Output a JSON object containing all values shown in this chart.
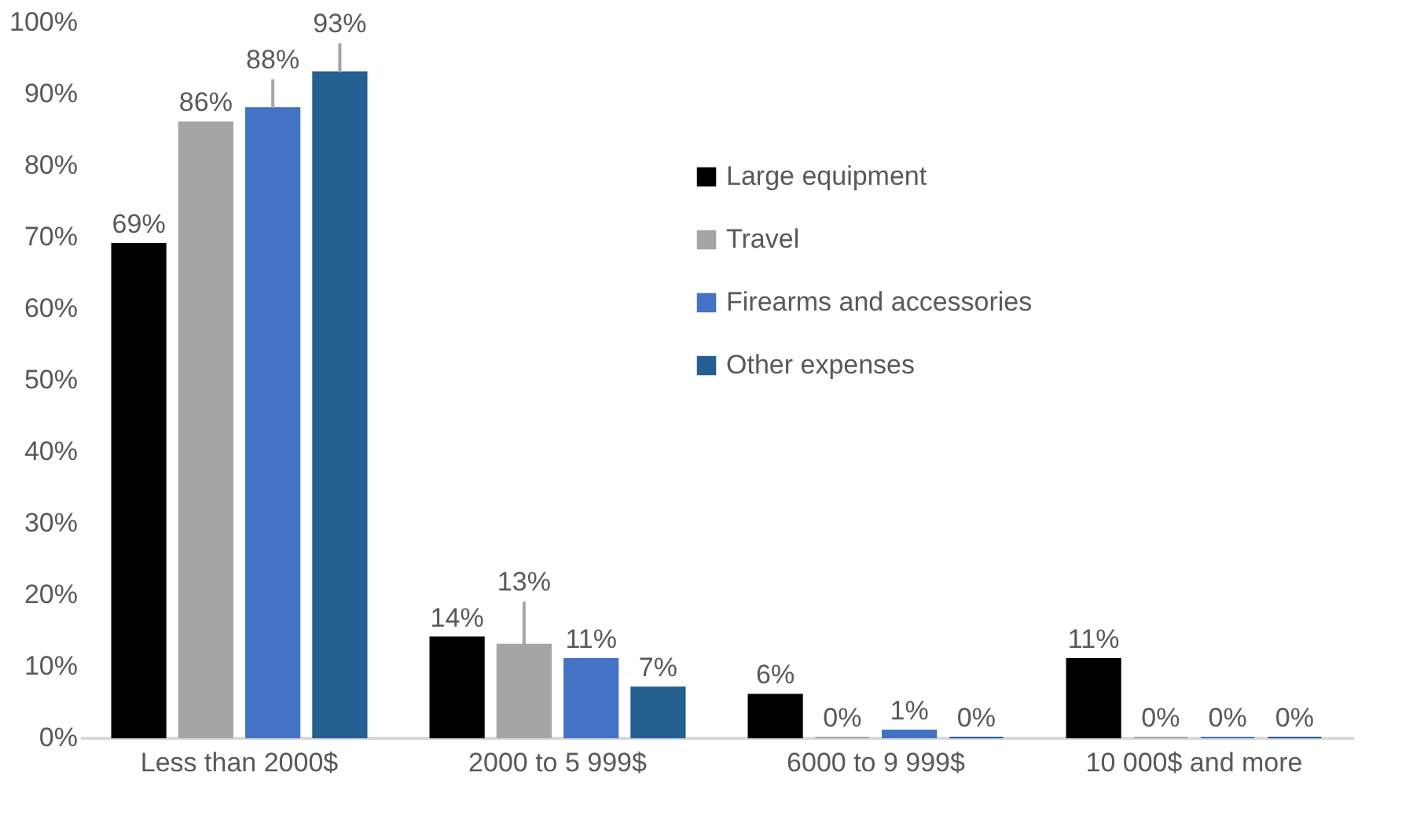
{
  "chart_data": {
    "type": "bar",
    "categories": [
      "Less than 2000$",
      "2000 to 5 999$",
      "6000 to 9 999$",
      "10 000$ and more"
    ],
    "series": [
      {
        "name": "Large equipment",
        "color": "#000000",
        "values": [
          69,
          14,
          6,
          11
        ],
        "value_labels": [
          "69%",
          "14%",
          "6%",
          "11%"
        ]
      },
      {
        "name": "Travel",
        "color": "#a5a5a5",
        "values": [
          86,
          13,
          0,
          0
        ],
        "value_labels": [
          "86%",
          "13%",
          "0%",
          "0%"
        ],
        "errors": [
          null,
          [
            13,
            19
          ],
          null,
          null
        ]
      },
      {
        "name": "Firearms and accessories",
        "color": "#4472c4",
        "values": [
          88,
          11,
          1,
          0
        ],
        "value_labels": [
          "88%",
          "11%",
          "1%",
          "0%"
        ],
        "errors": [
          [
            88,
            92
          ],
          null,
          null,
          null
        ]
      },
      {
        "name": "Other expenses",
        "color": "#255e91",
        "values": [
          93,
          7,
          0,
          0
        ],
        "value_labels": [
          "93%",
          "7%",
          "0%",
          "0%"
        ],
        "errors": [
          [
            93,
            97
          ],
          null,
          null,
          null
        ]
      }
    ],
    "ylim": [
      0,
      100
    ],
    "yticks": [
      {
        "value": 0,
        "label": "0%"
      },
      {
        "value": 10,
        "label": "10%"
      },
      {
        "value": 20,
        "label": "20%"
      },
      {
        "value": 30,
        "label": "30%"
      },
      {
        "value": 40,
        "label": "40%"
      },
      {
        "value": 50,
        "label": "50%"
      },
      {
        "value": 60,
        "label": "60%"
      },
      {
        "value": 70,
        "label": "70%"
      },
      {
        "value": 80,
        "label": "80%"
      },
      {
        "value": 90,
        "label": "90%"
      },
      {
        "value": 100,
        "label": "100%"
      }
    ],
    "grid": false,
    "legend": "top right"
  }
}
